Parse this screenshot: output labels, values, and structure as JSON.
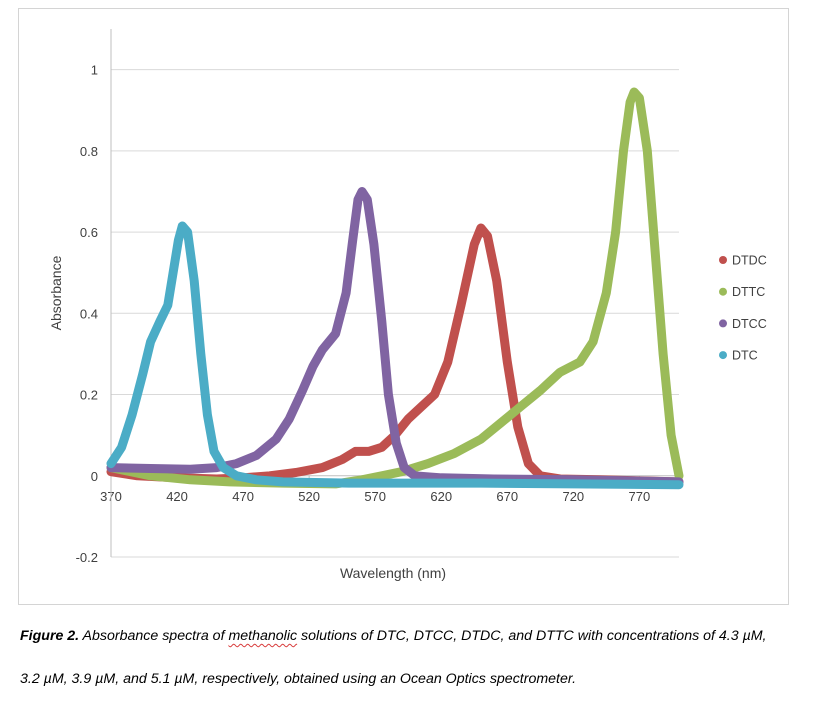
{
  "chart_data": {
    "type": "line",
    "xlabel": "Wavelength (nm)",
    "ylabel": "Absorbance",
    "xlim": [
      370,
      800
    ],
    "ylim": [
      -0.2,
      1.1
    ],
    "x_ticks": [
      370,
      420,
      470,
      520,
      570,
      620,
      670,
      720,
      770
    ],
    "y_ticks": [
      -0.2,
      0,
      0.2,
      0.4,
      0.6,
      0.8,
      1
    ],
    "y_tick_labels": [
      "-0.2",
      "0",
      "0.2",
      "0.4",
      "0.6",
      "0.8",
      "1"
    ],
    "grid": "horizontal",
    "legend_position": "right",
    "series": [
      {
        "name": "DTDC",
        "color": "#c0504d",
        "points": [
          [
            370,
            0.01
          ],
          [
            390,
            0.0
          ],
          [
            420,
            -0.005
          ],
          [
            450,
            -0.008
          ],
          [
            470,
            -0.005
          ],
          [
            490,
            0.0
          ],
          [
            510,
            0.008
          ],
          [
            530,
            0.02
          ],
          [
            545,
            0.04
          ],
          [
            555,
            0.06
          ],
          [
            565,
            0.06
          ],
          [
            575,
            0.07
          ],
          [
            585,
            0.1
          ],
          [
            595,
            0.14
          ],
          [
            605,
            0.17
          ],
          [
            615,
            0.2
          ],
          [
            625,
            0.28
          ],
          [
            635,
            0.42
          ],
          [
            645,
            0.57
          ],
          [
            650,
            0.61
          ],
          [
            655,
            0.59
          ],
          [
            662,
            0.48
          ],
          [
            670,
            0.28
          ],
          [
            678,
            0.12
          ],
          [
            686,
            0.03
          ],
          [
            695,
            0.0
          ],
          [
            710,
            -0.008
          ],
          [
            740,
            -0.01
          ],
          [
            800,
            -0.015
          ]
        ]
      },
      {
        "name": "DTTC",
        "color": "#9bbb59",
        "points": [
          [
            370,
            0.02
          ],
          [
            400,
            0.0
          ],
          [
            430,
            -0.01
          ],
          [
            460,
            -0.015
          ],
          [
            500,
            -0.018
          ],
          [
            540,
            -0.02
          ],
          [
            560,
            -0.01
          ],
          [
            575,
            0.0
          ],
          [
            590,
            0.01
          ],
          [
            610,
            0.03
          ],
          [
            630,
            0.055
          ],
          [
            650,
            0.09
          ],
          [
            665,
            0.13
          ],
          [
            680,
            0.17
          ],
          [
            695,
            0.21
          ],
          [
            710,
            0.255
          ],
          [
            725,
            0.28
          ],
          [
            735,
            0.33
          ],
          [
            745,
            0.45
          ],
          [
            752,
            0.6
          ],
          [
            758,
            0.8
          ],
          [
            763,
            0.92
          ],
          [
            766,
            0.945
          ],
          [
            770,
            0.93
          ],
          [
            776,
            0.8
          ],
          [
            782,
            0.55
          ],
          [
            788,
            0.3
          ],
          [
            794,
            0.1
          ],
          [
            800,
            0.0
          ]
        ]
      },
      {
        "name": "DTCC",
        "color": "#8064a2",
        "points": [
          [
            370,
            0.02
          ],
          [
            400,
            0.018
          ],
          [
            430,
            0.016
          ],
          [
            450,
            0.02
          ],
          [
            465,
            0.03
          ],
          [
            480,
            0.05
          ],
          [
            495,
            0.09
          ],
          [
            505,
            0.14
          ],
          [
            515,
            0.21
          ],
          [
            523,
            0.27
          ],
          [
            530,
            0.31
          ],
          [
            540,
            0.35
          ],
          [
            548,
            0.45
          ],
          [
            553,
            0.58
          ],
          [
            557,
            0.68
          ],
          [
            560,
            0.7
          ],
          [
            564,
            0.68
          ],
          [
            569,
            0.57
          ],
          [
            575,
            0.38
          ],
          [
            580,
            0.2
          ],
          [
            586,
            0.08
          ],
          [
            592,
            0.02
          ],
          [
            600,
            0.0
          ],
          [
            620,
            -0.005
          ],
          [
            660,
            -0.008
          ],
          [
            720,
            -0.01
          ],
          [
            800,
            -0.015
          ]
        ]
      },
      {
        "name": "DTC",
        "color": "#4bacc6",
        "points": [
          [
            370,
            0.03
          ],
          [
            378,
            0.07
          ],
          [
            386,
            0.15
          ],
          [
            394,
            0.25
          ],
          [
            400,
            0.33
          ],
          [
            407,
            0.38
          ],
          [
            413,
            0.42
          ],
          [
            417,
            0.5
          ],
          [
            421,
            0.58
          ],
          [
            424,
            0.615
          ],
          [
            428,
            0.6
          ],
          [
            433,
            0.48
          ],
          [
            438,
            0.3
          ],
          [
            443,
            0.15
          ],
          [
            448,
            0.06
          ],
          [
            455,
            0.02
          ],
          [
            465,
            0.0
          ],
          [
            480,
            -0.01
          ],
          [
            500,
            -0.015
          ],
          [
            550,
            -0.018
          ],
          [
            650,
            -0.018
          ],
          [
            720,
            -0.02
          ],
          [
            800,
            -0.022
          ]
        ]
      }
    ]
  },
  "caption": {
    "figure_label": "Figure 2.",
    "line1_pre": " Absorbance spectra of ",
    "line1_word": "methanolic",
    "line1_post": " solutions of DTC, DTCC, DTDC, and DTTC with concentrations of 4.3 µM,",
    "line2": "3.2 µM, 3.9 µM, and 5.1 µM, respectively, obtained using an Ocean Optics spectrometer."
  }
}
